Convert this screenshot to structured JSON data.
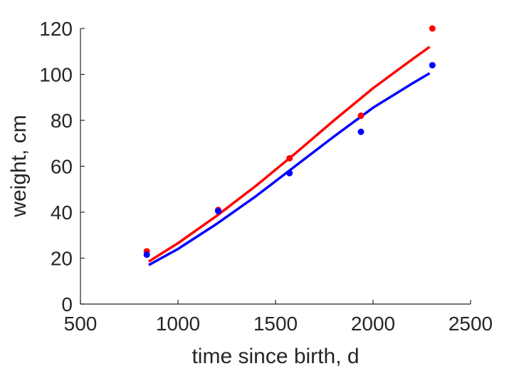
{
  "chart_data": {
    "type": "scatter",
    "xlabel": "time since birth, d",
    "ylabel": "weight, cm",
    "xlim": [
      500,
      2500
    ],
    "ylim": [
      0,
      120
    ],
    "xticks": [
      500,
      1000,
      1500,
      2000,
      2500
    ],
    "yticks": [
      0,
      20,
      40,
      60,
      80,
      100,
      120
    ],
    "xtick_labels": [
      "500",
      "1000",
      "1500",
      "2000",
      "2500"
    ],
    "ytick_labels": [
      "0",
      "20",
      "40",
      "60",
      "80",
      "100",
      "120"
    ],
    "grid": false,
    "series": [
      {
        "color": "#ff0000",
        "points": {
          "x": [
            840,
            1206,
            1572,
            1938,
            2304
          ],
          "y": [
            23,
            41,
            63.5,
            82,
            120
          ]
        },
        "fit": {
          "x": [
            850,
            1000,
            1200,
            1400,
            1600,
            1800,
            2000,
            2200,
            2290
          ],
          "y": [
            18.5,
            26.5,
            38.5,
            51.5,
            65.5,
            80,
            94,
            106.5,
            112
          ]
        }
      },
      {
        "color": "#0000ff",
        "points": {
          "x": [
            840,
            1206,
            1572,
            1938,
            2304
          ],
          "y": [
            21.5,
            40.5,
            57,
            75,
            104
          ]
        },
        "fit": {
          "x": [
            850,
            1000,
            1200,
            1400,
            1600,
            1800,
            2000,
            2200,
            2290
          ],
          "y": [
            17,
            24,
            35,
            47,
            60,
            73,
            85.5,
            96,
            100.5
          ]
        }
      }
    ]
  }
}
